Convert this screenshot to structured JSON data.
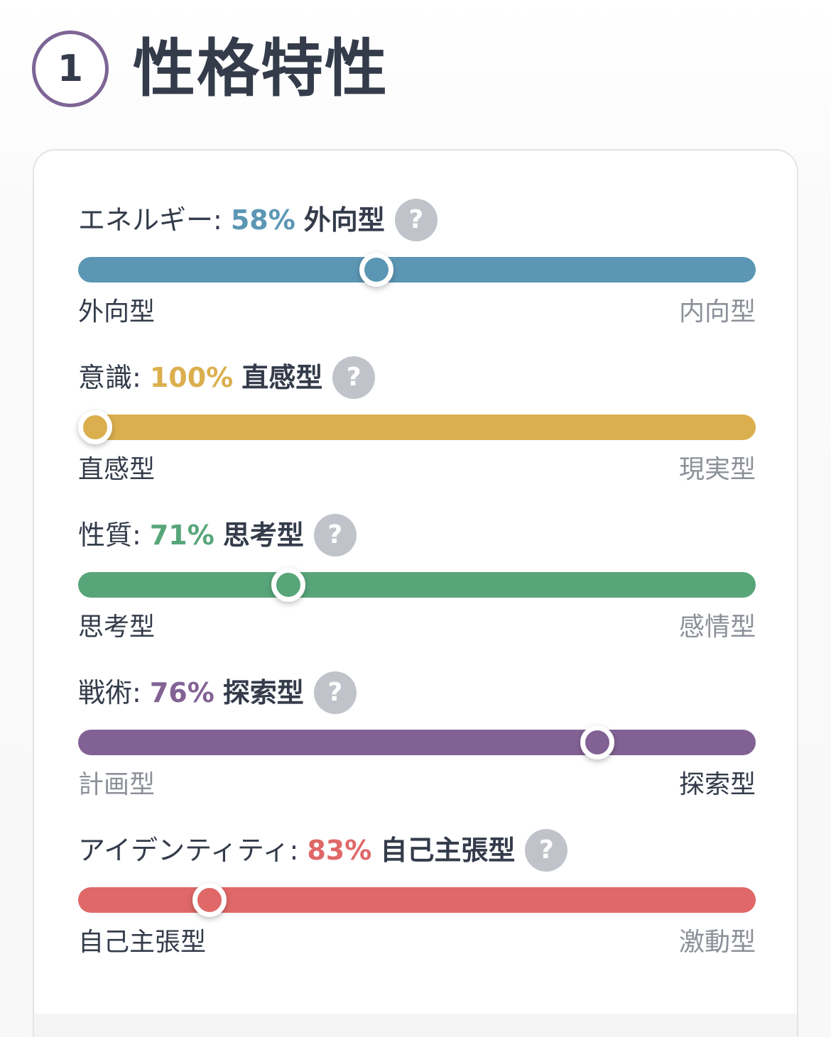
{
  "header": {
    "step_number": "1",
    "title": "性格特性"
  },
  "help_symbol": "?",
  "traits": [
    {
      "name": "エネルギー:",
      "percent": "58%",
      "type": "外向型",
      "left_label": "外向型",
      "right_label": "内向型",
      "active_side": "left",
      "position": 0.44,
      "color": "#5b97b4"
    },
    {
      "name": "意識:",
      "percent": "100%",
      "type": "直感型",
      "left_label": "直感型",
      "right_label": "現実型",
      "active_side": "left",
      "position": 0.025,
      "color": "#dbaf4e"
    },
    {
      "name": "性質:",
      "percent": "71%",
      "type": "思考型",
      "left_label": "思考型",
      "right_label": "感情型",
      "active_side": "left",
      "position": 0.31,
      "color": "#58a57a"
    },
    {
      "name": "戦術:",
      "percent": "76%",
      "type": "探索型",
      "left_label": "計画型",
      "right_label": "探索型",
      "active_side": "right",
      "position": 0.766,
      "color": "#826294"
    },
    {
      "name": "アイデンティティ:",
      "percent": "83%",
      "type": "自己主張型",
      "left_label": "自己主張型",
      "right_label": "激動型",
      "active_side": "left",
      "position": 0.194,
      "color": "#e06868"
    }
  ]
}
